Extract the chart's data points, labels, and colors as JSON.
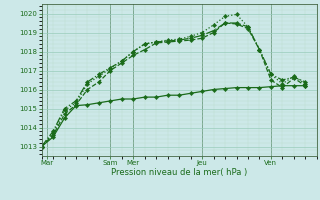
{
  "background_color": "#cce8e8",
  "grid_major_color": "#99ccbb",
  "grid_minor_color": "#bbddcc",
  "line_color": "#1a6b1a",
  "xlabel": "Pression niveau de la mer( hPa )",
  "ylim": [
    1012.5,
    1020.5
  ],
  "yticks": [
    1013,
    1014,
    1015,
    1016,
    1017,
    1018,
    1019,
    1020
  ],
  "xlim": [
    0,
    24
  ],
  "xtick_positions": [
    0.5,
    6,
    8,
    14,
    20
  ],
  "xtick_labels": [
    "Mar",
    "Sam",
    "Mer",
    "Jeu",
    "Ven"
  ],
  "vline_positions": [
    0.5,
    6,
    8,
    14,
    20
  ],
  "series1": [
    1013.0,
    1013.5,
    1014.5,
    1015.15,
    1015.2,
    1015.3,
    1015.4,
    1015.5,
    1015.5,
    1015.6,
    1015.6,
    1015.7,
    1015.7,
    1015.8,
    1015.9,
    1016.0,
    1016.05,
    1016.1,
    1016.1,
    1016.1,
    1016.15,
    1016.2,
    1016.2,
    1016.2
  ],
  "series2": [
    1013.0,
    1013.6,
    1014.7,
    1015.2,
    1016.0,
    1016.4,
    1017.0,
    1017.4,
    1017.8,
    1018.1,
    1018.45,
    1018.5,
    1018.55,
    1018.6,
    1018.7,
    1019.0,
    1019.5,
    1019.45,
    1019.2,
    1018.1,
    1016.5,
    1016.1,
    1016.6,
    1016.2
  ],
  "series3": [
    1013.0,
    1013.7,
    1014.9,
    1015.3,
    1016.3,
    1016.7,
    1017.1,
    1017.5,
    1018.0,
    1018.4,
    1018.5,
    1018.6,
    1018.65,
    1018.8,
    1019.0,
    1019.4,
    1019.85,
    1019.95,
    1019.3,
    1018.1,
    1016.8,
    1016.3,
    1016.7,
    1016.3
  ],
  "series4": [
    1013.0,
    1013.8,
    1015.0,
    1015.4,
    1016.4,
    1016.8,
    1017.15,
    1017.5,
    1018.0,
    1018.4,
    1018.5,
    1018.55,
    1018.6,
    1018.7,
    1018.85,
    1019.1,
    1019.5,
    1019.5,
    1019.3,
    1018.1,
    1016.8,
    1016.5,
    1016.65,
    1016.4
  ],
  "linewidth": 0.9,
  "markersize": 2.2
}
